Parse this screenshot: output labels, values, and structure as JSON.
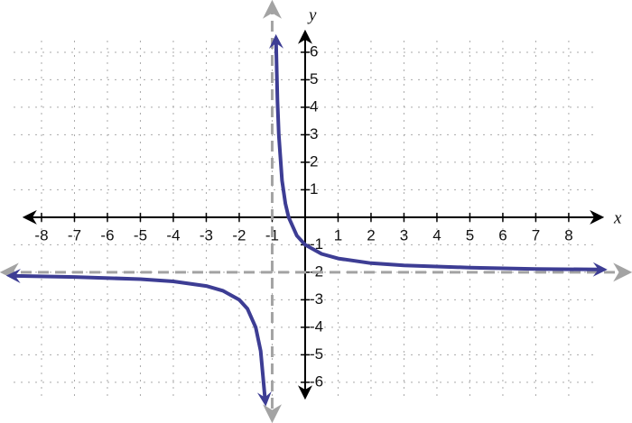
{
  "chart_data": {
    "type": "line",
    "x_label": "x",
    "y_label": "y",
    "x": [
      -8.8,
      -7,
      -5,
      -4,
      -3,
      -2.5,
      -2,
      -1.75,
      -1.5,
      -1.35,
      -1.22,
      null,
      -0.88,
      -0.84,
      -0.8,
      -0.7,
      -0.6,
      -0.5,
      -0.25,
      0,
      0.5,
      1,
      2,
      3,
      5,
      7,
      8.9
    ],
    "series": [
      {
        "color": "#3d3d94",
        "values": [
          -2.13,
          -2.17,
          -2.25,
          -2.33,
          -2.5,
          -2.67,
          -3,
          -3.33,
          -4,
          -4.86,
          -6.55,
          null,
          6.33,
          4.25,
          3,
          1.33,
          0.5,
          0,
          -0.67,
          -1,
          -1.33,
          -1.5,
          -1.67,
          -1.75,
          -1.83,
          -1.88,
          -1.9
        ]
      }
    ],
    "asymptotes": {
      "x": -1,
      "y": -2,
      "color": "#a3a3a3"
    },
    "xlim": [
      -9.26,
      9.92
    ],
    "ylim": [
      -7.48,
      7.9
    ],
    "xticks": [
      -8,
      -7,
      -6,
      -5,
      -4,
      -3,
      -2,
      -1,
      1,
      2,
      3,
      4,
      5,
      6,
      7,
      8
    ],
    "yticks": [
      -6,
      -5,
      -4,
      -3,
      -2,
      -1,
      1,
      2,
      3,
      4,
      5,
      6
    ],
    "grid": true
  }
}
